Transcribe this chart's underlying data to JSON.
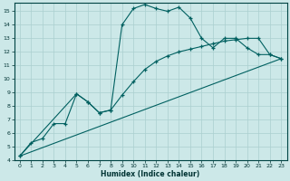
{
  "xlabel": "Humidex (Indice chaleur)",
  "background_color": "#cce8e8",
  "grid_color": "#aacfcf",
  "line_color": "#006060",
  "xlim": [
    -0.5,
    23.5
  ],
  "ylim": [
    4,
    15.6
  ],
  "xticks": [
    0,
    1,
    2,
    3,
    4,
    5,
    6,
    7,
    8,
    9,
    10,
    11,
    12,
    13,
    14,
    15,
    16,
    17,
    18,
    19,
    20,
    21,
    22,
    23
  ],
  "yticks": [
    4,
    5,
    6,
    7,
    8,
    9,
    10,
    11,
    12,
    13,
    14,
    15
  ],
  "series1_x": [
    0,
    1,
    2,
    3,
    4,
    5,
    6,
    7,
    8,
    9,
    10,
    11,
    12,
    13,
    14,
    15,
    16,
    17,
    18,
    19,
    20,
    21,
    22,
    23
  ],
  "series1_y": [
    4.3,
    5.3,
    5.6,
    6.7,
    6.7,
    8.9,
    8.3,
    7.5,
    7.7,
    14.0,
    15.2,
    15.5,
    15.2,
    15.0,
    15.3,
    14.5,
    13.0,
    12.3,
    13.0,
    13.0,
    12.3,
    11.8,
    11.8,
    11.5
  ],
  "series2_x": [
    0,
    5,
    6,
    7,
    8,
    9,
    10,
    11,
    12,
    13,
    14,
    15,
    16,
    17,
    18,
    19,
    20,
    21,
    22,
    23
  ],
  "series2_y": [
    4.3,
    8.9,
    8.3,
    7.5,
    7.7,
    8.8,
    9.8,
    10.7,
    11.3,
    11.7,
    12.0,
    12.2,
    12.4,
    12.6,
    12.8,
    12.9,
    13.0,
    13.0,
    11.8,
    11.5
  ],
  "series3_x": [
    0,
    23
  ],
  "series3_y": [
    4.3,
    11.5
  ]
}
